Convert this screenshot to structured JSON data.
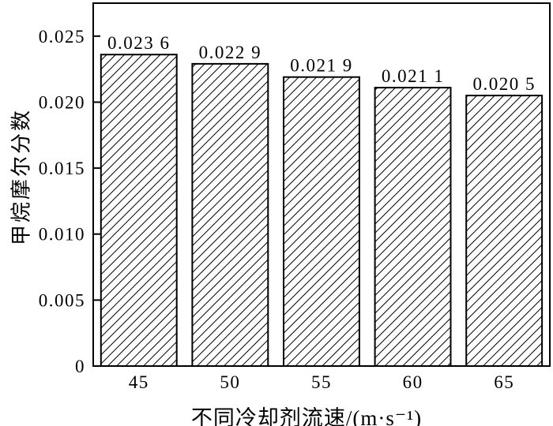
{
  "figure": {
    "background_color": "#ffffff",
    "ink_color": "#000000"
  },
  "chart_data": {
    "type": "bar",
    "title": "",
    "xlabel": "不同冷却剂流速/(m·s⁻¹)",
    "ylabel": "甲烷摩尔分数",
    "categories": [
      "45",
      "50",
      "55",
      "60",
      "65"
    ],
    "values": [
      0.0236,
      0.0229,
      0.0219,
      0.0211,
      0.0205
    ],
    "value_labels": [
      "0.023 6",
      "0.022 9",
      "0.021 9",
      "0.021 1",
      "0.020 5"
    ],
    "ylim": [
      0,
      0.0275
    ],
    "yticks": [
      0.005,
      0.01,
      0.015,
      0.02,
      0.025
    ],
    "ytick_labels": [
      "0.005",
      "0.010",
      "0.015",
      "0.020",
      "0.025"
    ],
    "origin_tick_label": "0",
    "grid": false,
    "legend": null,
    "bar_style": {
      "fill_pattern": "diagonal-hatch",
      "hatch_color": "#000000",
      "edge_color": "#000000",
      "face_color": "#ffffff"
    }
  }
}
